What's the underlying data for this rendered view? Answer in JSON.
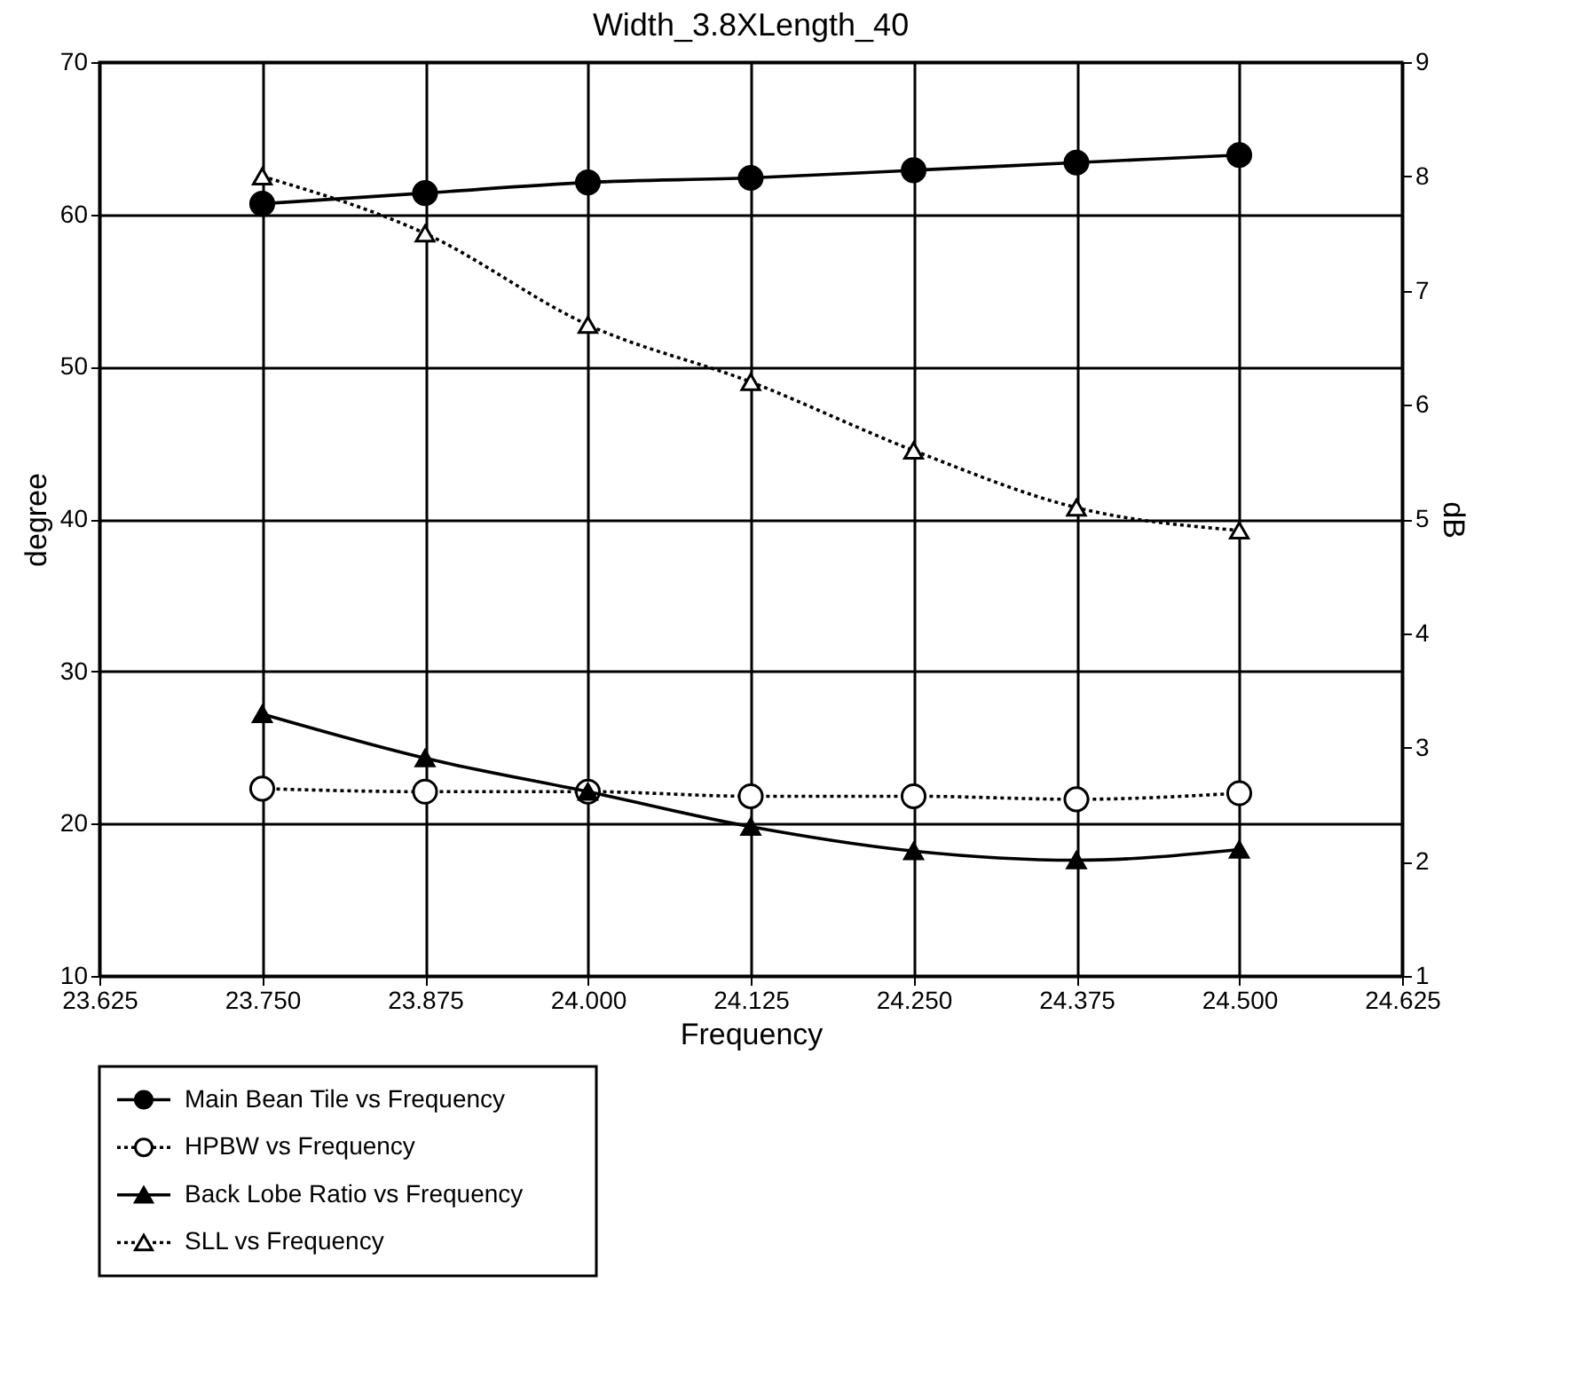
{
  "chart_data": {
    "type": "line",
    "title": "Width_3.8XLength_40",
    "xlabel": "Frequency",
    "ylabel": "degree",
    "y2label": "dB",
    "x": [
      23.75,
      23.875,
      24.0,
      24.125,
      24.25,
      24.375,
      24.5
    ],
    "series": [
      {
        "name": "Main Bean Tile vs Frequency",
        "color": "#000000",
        "marker": "circle",
        "line_style": "solid",
        "values": [
          60.7,
          61.4,
          62.1,
          62.4,
          62.9,
          63.4,
          63.9
        ]
      },
      {
        "name": "HPBW vs Frequency",
        "color": "#000000",
        "marker": "circle",
        "line_style": "dotted",
        "values": [
          22.3,
          22.1,
          22.1,
          21.8,
          21.8,
          21.6,
          22.0
        ]
      },
      {
        "name": "Back Lobe Ratio vs Frequency",
        "color": "#000000",
        "marker": "triangle",
        "line_style": "solid",
        "values": [
          27.2,
          24.3,
          22.1,
          19.8,
          18.2,
          17.6,
          18.3
        ]
      },
      {
        "name": "SLL vs Frequency",
        "color": "#000000",
        "marker": "triangle",
        "line_style": "dotted",
        "axis": "y2",
        "values": [
          8.0,
          7.5,
          6.7,
          6.2,
          5.6,
          5.1,
          4.9
        ]
      }
    ],
    "xlim": [
      23.625,
      24.625
    ],
    "xticks": [
      {
        "value": 23.625,
        "label": "23.625"
      },
      {
        "value": 23.75,
        "label": "23.750"
      },
      {
        "value": 23.875,
        "label": "23.875"
      },
      {
        "value": 24.0,
        "label": "24.000"
      },
      {
        "value": 24.125,
        "label": "24.125"
      },
      {
        "value": 24.25,
        "label": "24.250"
      },
      {
        "value": 24.375,
        "label": "24.375"
      },
      {
        "value": 24.5,
        "label": "24.500"
      },
      {
        "value": 24.625,
        "label": "24.625"
      }
    ],
    "ylim": [
      10,
      70
    ],
    "yticks": [
      10,
      20,
      30,
      40,
      50,
      60,
      70
    ],
    "y2lim": [
      1,
      9
    ],
    "y2ticks": [
      1,
      2,
      3,
      4,
      5,
      6,
      7,
      8,
      9
    ],
    "grid": true,
    "legend": "bottom left"
  }
}
